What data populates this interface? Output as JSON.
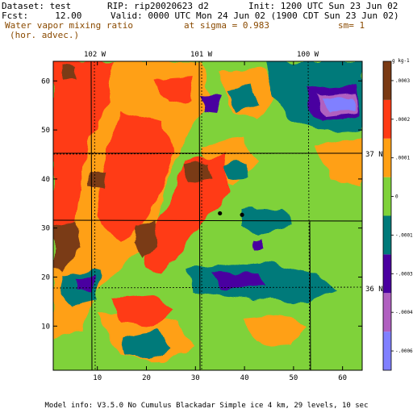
{
  "header": {
    "dataset": "Dataset: test",
    "rip": "RIP: rip20020623 d2",
    "init": "Init: 1200 UTC Sun 23 Jun 02",
    "fcst": "Fcst:     12.00",
    "valid": "Valid: 0000 UTC Mon 24 Jun 02 (1900 CDT Sun 23 Jun 02)",
    "field_name": "Water vapor mixing ratio",
    "field_sub": "(hor. advec.)",
    "level": "at sigma = 0.983",
    "sm": "sm= 1"
  },
  "footer": "Model info: V3.5.0   No Cumulus   Blackadar   Simple ice     4 km,   29 levels,   10 sec",
  "colors": {
    "purple_blue": "#8080ff",
    "lavender": "#b060c0",
    "indigo": "#4a00a0",
    "teal": "#007a7a",
    "green": "#7fd23a",
    "orange": "#ffa014",
    "red": "#ff3a14",
    "brown": "#7a3a14"
  },
  "chart_data": {
    "type": "heatmap",
    "title": "Water vapor mixing ratio (hor. advec.)",
    "x_grid_ticks": [
      "10",
      "20",
      "30",
      "40",
      "50",
      "60"
    ],
    "y_grid_ticks": [
      "10",
      "20",
      "30",
      "40",
      "50",
      "60"
    ],
    "xlim": [
      1,
      64
    ],
    "ylim": [
      1,
      64
    ],
    "longitude_labels": [
      "102 W",
      "101 W",
      "100 W"
    ],
    "latitude_labels": [
      "37 N",
      "36 N"
    ],
    "legend": {
      "unit": "g kg-1",
      "labels": [
        "-.0006",
        "-.0004",
        "-.0003",
        "-.0001",
        "0",
        ".0001",
        ".0002",
        ".0003"
      ],
      "colors": [
        "#8080ff",
        "#b060c0",
        "#4a00a0",
        "#007a7a",
        "#7fd23a",
        "#ffa014",
        "#ff3a14",
        "#7a3a14"
      ]
    },
    "stations": [
      {
        "x": 35,
        "y": 33
      },
      {
        "x": 39.5,
        "y": 32.7
      }
    ]
  }
}
